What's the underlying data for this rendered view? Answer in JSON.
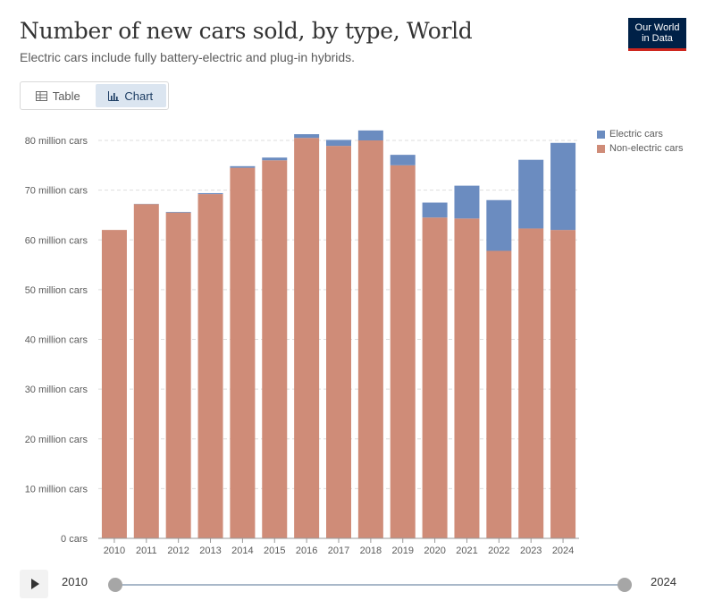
{
  "header": {
    "title": "Number of new cars sold, by type, World",
    "subtitle": "Electric cars include fully battery-electric and plug-in hybrids.",
    "logo_line1": "Our World",
    "logo_line2": "in Data"
  },
  "tabs": {
    "table_label": "Table",
    "chart_label": "Chart"
  },
  "timeline": {
    "start_label": "2010",
    "end_label": "2024"
  },
  "colors": {
    "electric": "#6b8cc0",
    "non_electric": "#cf8c78",
    "grid": "#dddddd",
    "axis": "#999999"
  },
  "chart_data": {
    "type": "bar",
    "stacked": true,
    "title": "Number of new cars sold, by type, World",
    "subtitle": "Electric cars include fully battery-electric and plug-in hybrids.",
    "categories": [
      "2010",
      "2011",
      "2012",
      "2013",
      "2014",
      "2015",
      "2016",
      "2017",
      "2018",
      "2019",
      "2020",
      "2021",
      "2022",
      "2023",
      "2024"
    ],
    "series": [
      {
        "name": "Non-electric cars",
        "color": "#cf8c78",
        "values": [
          62.0,
          67.2,
          65.5,
          69.2,
          74.5,
          76.0,
          80.5,
          78.9,
          80.0,
          75.0,
          64.5,
          64.3,
          57.8,
          62.3,
          62.0
        ]
      },
      {
        "name": "Electric cars",
        "color": "#6b8cc0",
        "values": [
          0.0,
          0.05,
          0.13,
          0.2,
          0.32,
          0.55,
          0.75,
          1.2,
          2.0,
          2.1,
          3.0,
          6.6,
          10.2,
          13.8,
          17.5
        ]
      }
    ],
    "y_ticks": [
      0,
      10,
      20,
      30,
      40,
      50,
      60,
      70,
      80
    ],
    "y_tick_labels": [
      "0 cars",
      "10 million cars",
      "20 million cars",
      "30 million cars",
      "40 million cars",
      "50 million cars",
      "60 million cars",
      "70 million cars",
      "80 million cars"
    ],
    "ylim": [
      0,
      80
    ],
    "xlabel": "",
    "ylabel": "",
    "legend": [
      "Electric cars",
      "Non-electric cars"
    ],
    "legend_position": "right"
  }
}
